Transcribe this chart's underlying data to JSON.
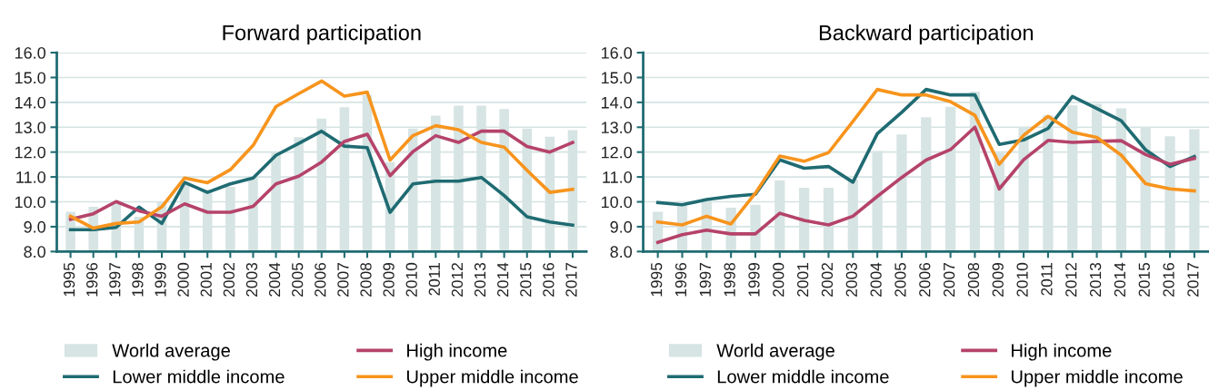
{
  "chart_data": [
    {
      "type": "line",
      "title": "Forward participation",
      "categories": [
        "1995",
        "1996",
        "1997",
        "1998",
        "1999",
        "2000",
        "2001",
        "2002",
        "2003",
        "2004",
        "2005",
        "2006",
        "2007",
        "2008",
        "2009",
        "2010",
        "2011",
        "2012",
        "2013",
        "2014",
        "2015",
        "2016",
        "2017"
      ],
      "ylim": [
        8,
        16
      ],
      "yticks": [
        {
          "value": 8,
          "label": "8.0"
        },
        {
          "value": 9,
          "label": "9.0"
        },
        {
          "value": 10,
          "label": "10.0"
        },
        {
          "value": 11,
          "label": "11.0"
        },
        {
          "value": 12,
          "label": "12.0"
        },
        {
          "value": 13,
          "label": "13.0"
        },
        {
          "value": 14,
          "label": "14.0"
        },
        {
          "value": 15,
          "label": "15.0"
        },
        {
          "value": 16,
          "label": "16.0"
        }
      ],
      "grid": "y",
      "legend": "bottom",
      "series": [
        {
          "name": "World average",
          "type": "bar",
          "color": "#d6e4e3",
          "values": [
            9.6,
            9.8,
            10.0,
            9.4,
            10.0,
            10.8,
            10.5,
            10.6,
            11.0,
            12.0,
            12.6,
            13.35,
            13.8,
            14.3,
            11.6,
            12.95,
            13.47,
            13.87,
            13.87,
            13.73,
            12.95,
            12.62,
            12.88
          ]
        },
        {
          "name": "Lower middle income",
          "color": "#1f6b72",
          "values": [
            8.88,
            8.88,
            8.97,
            9.79,
            9.13,
            10.78,
            10.38,
            10.72,
            10.96,
            11.87,
            12.35,
            12.84,
            12.24,
            12.18,
            9.58,
            10.72,
            10.83,
            10.83,
            10.98,
            10.25,
            9.4,
            9.19,
            9.06
          ]
        },
        {
          "name": "High income",
          "color": "#b5436a",
          "values": [
            9.3,
            9.52,
            10.01,
            9.64,
            9.42,
            9.92,
            9.58,
            9.58,
            9.82,
            10.72,
            11.03,
            11.6,
            12.43,
            12.72,
            11.05,
            12.02,
            12.66,
            12.39,
            12.84,
            12.84,
            12.23,
            12.0,
            12.39
          ]
        },
        {
          "name": "Upper middle income",
          "color": "#f7941d",
          "values": [
            9.42,
            8.94,
            9.13,
            9.19,
            9.8,
            10.96,
            10.77,
            11.29,
            12.27,
            13.83,
            14.35,
            14.86,
            14.25,
            14.41,
            11.68,
            12.66,
            13.06,
            12.9,
            12.39,
            12.2,
            11.27,
            10.38,
            10.5
          ]
        }
      ]
    },
    {
      "type": "line",
      "title": "Backward participation",
      "categories": [
        "1995",
        "1996",
        "1997",
        "1998",
        "1999",
        "2000",
        "2001",
        "2002",
        "2003",
        "2004",
        "2005",
        "2006",
        "2007",
        "2008",
        "2009",
        "2010",
        "2011",
        "2012",
        "2013",
        "2014",
        "2015",
        "2016",
        "2017"
      ],
      "ylim": [
        8,
        16
      ],
      "yticks": [
        {
          "value": 8,
          "label": "8.0"
        },
        {
          "value": 9,
          "label": "9.0"
        },
        {
          "value": 10,
          "label": "10.0"
        },
        {
          "value": 11,
          "label": "11.0"
        },
        {
          "value": 12,
          "label": "12.0"
        },
        {
          "value": 13,
          "label": "13.0"
        },
        {
          "value": 14,
          "label": "14.0"
        },
        {
          "value": 15,
          "label": "15.0"
        },
        {
          "value": 16,
          "label": "16.0"
        }
      ],
      "grid": "y",
      "legend": "bottom",
      "series": [
        {
          "name": "World average",
          "type": "bar",
          "color": "#d6e4e3",
          "values": [
            9.6,
            9.85,
            10.05,
            9.76,
            9.88,
            10.86,
            10.57,
            10.57,
            10.9,
            12.04,
            12.71,
            13.4,
            13.82,
            14.43,
            11.98,
            13.0,
            13.48,
            13.88,
            13.94,
            13.76,
            13.0,
            12.64,
            12.92
          ]
        },
        {
          "name": "Lower middle income",
          "color": "#1f6b72",
          "values": [
            9.97,
            9.88,
            10.09,
            10.22,
            10.3,
            11.69,
            11.35,
            11.42,
            10.79,
            12.74,
            13.6,
            14.52,
            14.3,
            14.3,
            12.31,
            12.49,
            12.95,
            14.24,
            13.75,
            13.26,
            12.09,
            11.42,
            11.82
          ]
        },
        {
          "name": "High income",
          "color": "#b5436a",
          "values": [
            8.37,
            8.68,
            8.86,
            8.71,
            8.71,
            9.54,
            9.25,
            9.07,
            9.42,
            10.22,
            10.98,
            11.68,
            12.1,
            13.0,
            10.52,
            11.69,
            12.47,
            12.39,
            12.43,
            12.46,
            11.9,
            11.51,
            11.75
          ]
        },
        {
          "name": "Upper middle income",
          "color": "#f7941d",
          "values": [
            9.19,
            9.07,
            9.42,
            9.11,
            10.35,
            11.84,
            11.63,
            11.98,
            13.23,
            14.52,
            14.3,
            14.3,
            14.03,
            13.48,
            11.51,
            12.68,
            13.44,
            12.8,
            12.59,
            11.88,
            10.73,
            10.52,
            10.44
          ]
        }
      ]
    }
  ]
}
